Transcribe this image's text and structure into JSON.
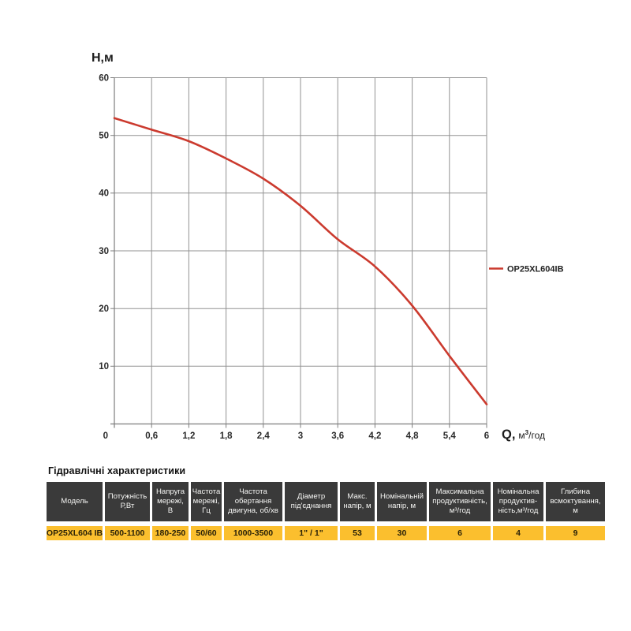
{
  "chart": {
    "y_axis_title": "Н,м",
    "x_axis_title_main": "Q,",
    "x_axis_unit_base": "м",
    "x_axis_unit_sup": "3",
    "x_axis_unit_rest": "/год",
    "origin_label": "0",
    "colors": {
      "curve": "#cb3a2e",
      "grid": "#929292",
      "axis": "#7d7d7d",
      "tick_text": "#2a2a2a"
    }
  },
  "chart_data": {
    "type": "line",
    "title": "",
    "xlabel": "Q, м³/год",
    "ylabel": "Н,м",
    "xlim": [
      0,
      6
    ],
    "ylim": [
      0,
      60
    ],
    "grid": true,
    "legend_position": "right-middle",
    "x": [
      0,
      0.6,
      1.2,
      1.8,
      2.4,
      3,
      3.6,
      4.2,
      4.8,
      5.4,
      6
    ],
    "x_tick_labels": [
      "0,6",
      "1,2",
      "1,8",
      "2,4",
      "3",
      "3,6",
      "4,2",
      "4,8",
      "5,4",
      "6"
    ],
    "y_ticks": [
      10,
      20,
      30,
      40,
      50,
      60
    ],
    "y_tick_labels": [
      "10",
      "20",
      "30",
      "40",
      "50",
      "60"
    ],
    "series": [
      {
        "name": "OP25XL604IB",
        "color": "#cb3a2e",
        "values": [
          53,
          51,
          49,
          46,
          42.5,
          37.8,
          32,
          27.3,
          20.5,
          11.8,
          3.4
        ]
      }
    ]
  },
  "table": {
    "title": "Гідравлічні характеристики",
    "header_bg": "#3a3a3a",
    "row_bg": "#fbbf2e",
    "columns": [
      "Модель",
      "Потужність\nР,Вт",
      "Напруга\nмережі,\nВ",
      "Частота\nмережі,\nГц",
      "Частота\nобертання\nдвигуна, об/хв",
      "Діаметр\nпід'єднання",
      "Макс.\nнапір, м",
      "Номінальній\nнапір, м",
      "Максимальна\nпродуктивність,\nм³/год",
      "Номінальна\nпродуктив-\nність,м³/год",
      "Глибина\nвсмоктування,\nм"
    ],
    "rows": [
      [
        "OP25XL604 IB",
        "500-1100",
        "180-250",
        "50/60",
        "1000-3500",
        "1\" / 1\"",
        "53",
        "30",
        "6",
        "4",
        "9"
      ]
    ]
  }
}
